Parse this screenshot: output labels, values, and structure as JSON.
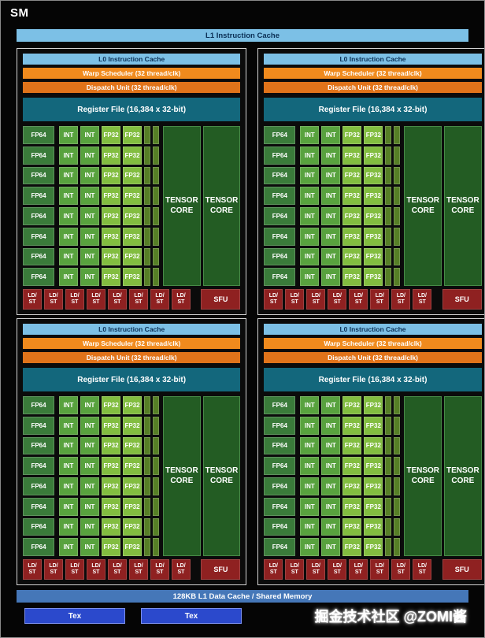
{
  "title": "SM",
  "l1_cache_label": "L1 Instruction Cache",
  "quadrant": {
    "l0_label": "L0 Instruction Cache",
    "warp_label": "Warp Scheduler (32 thread/clk)",
    "dispatch_label": "Dispatch Unit (32 thread/clk)",
    "regfile_label": "Register File (16,384 x 32-bit)",
    "core_columns": [
      "FP64",
      "INT",
      "INT",
      "FP32",
      "FP32"
    ],
    "tensor_label": "TENSOR CORE",
    "ldst_line1": "LD/",
    "ldst_line2": "ST",
    "sfu_label": "SFU"
  },
  "layout": {
    "quadrants": 4,
    "rows": 8,
    "strip_columns": 2,
    "tensor_count": 2,
    "ldst_count": 8
  },
  "footer": {
    "l1_data_label": "128KB L1 Data Cache / Shared Memory",
    "tex_label": "Tex",
    "tex_count": 2,
    "watermark": "掘金技术社区 @ZOMI酱"
  },
  "colors": {
    "canvas_bg": "#050505",
    "quad_bg": "#0b0b0b",
    "light_blue": "#7cc0e6",
    "bar_text_dark": "#0a2f55",
    "warp_orange": "#f08a1d",
    "dispatch_orange": "#e0731a",
    "regfile_teal": "#13677c",
    "fp64_green": "#3a7b3a",
    "int_green": "#58a23e",
    "fp32_green": "#82bd40",
    "strip_green": "#567f26",
    "tensor_green": "#235c23",
    "tensor_border": "#478a47",
    "ldst_red": "#8f2121",
    "datacache_blue": "#4577b8",
    "tex_blue": "#2b49cc"
  }
}
